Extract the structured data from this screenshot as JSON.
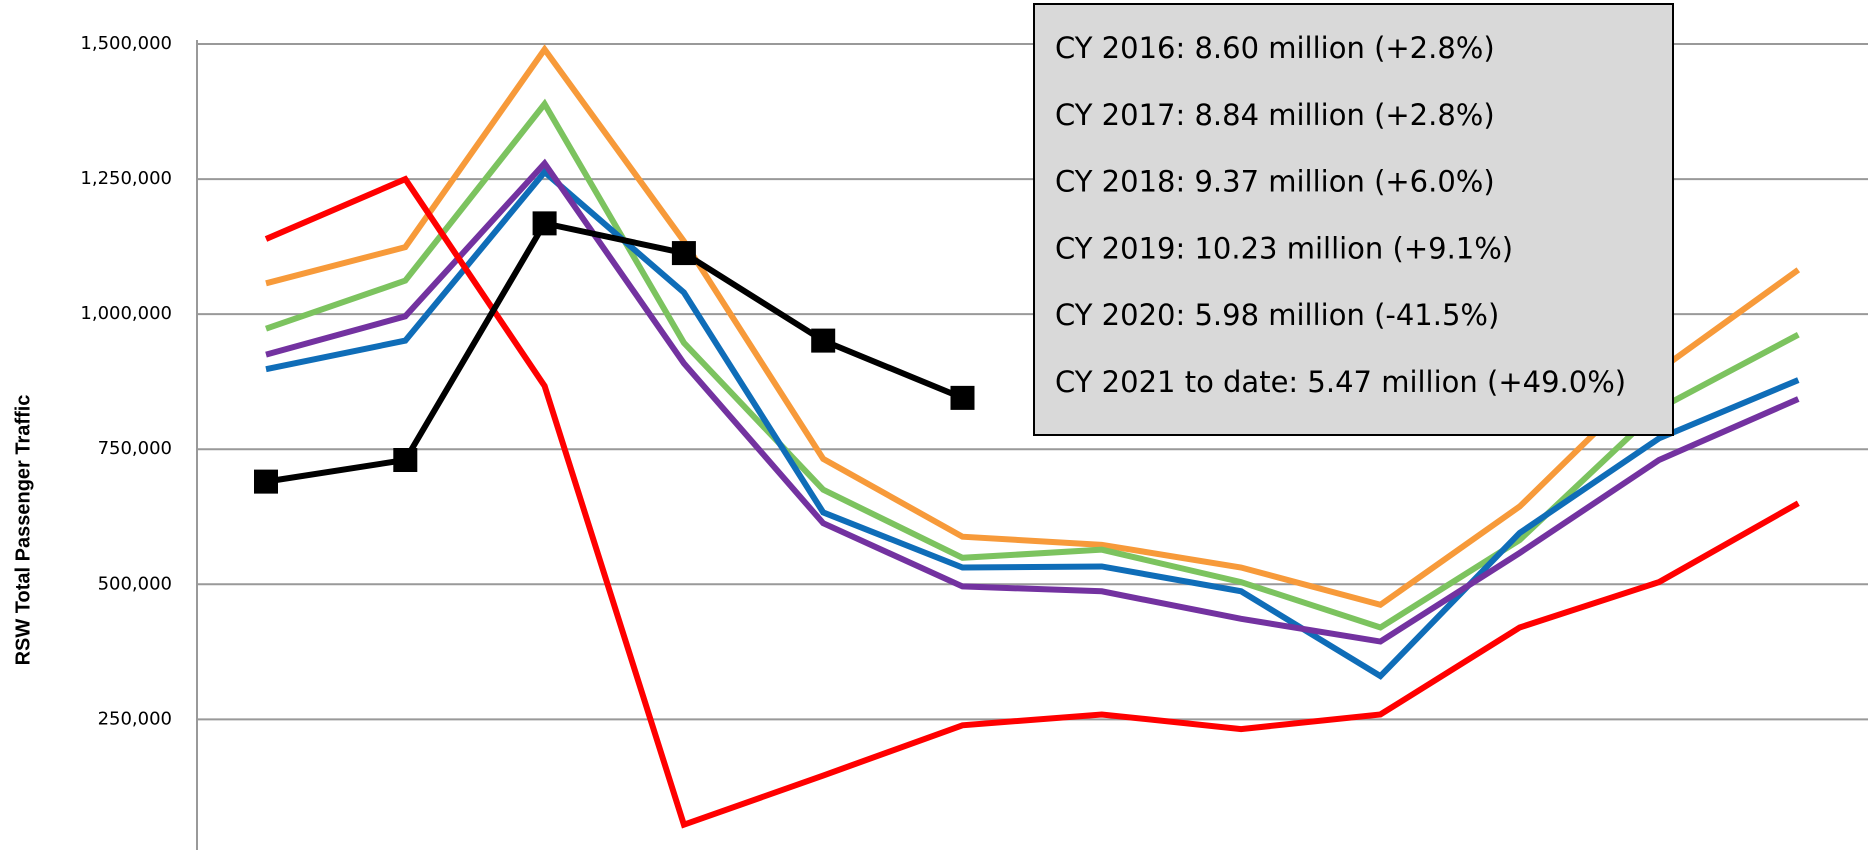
{
  "chart_data": {
    "type": "line",
    "y_label": "RSW Total Passenger Traffic",
    "annotations": [
      "CY 2016: 8.60 million (+2.8%)",
      "CY 2017: 8.84 million (+2.8%)",
      "CY 2018: 9.37 million (+6.0%)",
      "CY 2019:  10.23 million (+9.1%)",
      "CY 2020:  5.98 million (-41.5%)",
      "CY 2021 to date:  5.47 million (+49.0%)"
    ],
    "categories": [
      null,
      null,
      null,
      null,
      null,
      null,
      null,
      null,
      null,
      null,
      null,
      null
    ],
    "ylim": [
      10000,
      1500000
    ],
    "yticks": [
      {
        "value": 250000,
        "label": "250,000"
      },
      {
        "value": 500000,
        "label": "500,000"
      },
      {
        "value": 750000,
        "label": "750,000"
      },
      {
        "value": 1000000,
        "label": "1,000,000"
      },
      {
        "value": 1250000,
        "label": "1,250,000"
      },
      {
        "value": 1500000,
        "label": "1,500,000"
      }
    ],
    "grid": true,
    "series": [
      {
        "color": "#f79a3a",
        "values": [
          1057000,
          1124000,
          1490000,
          1135000,
          732000,
          588000,
          573000,
          531000,
          462000,
          644000,
          896000,
          1082000
        ]
      },
      {
        "color": "#7cc35f",
        "values": [
          973000,
          1062000,
          1389000,
          947000,
          675000,
          549000,
          564000,
          504000,
          420000,
          582000,
          825000,
          962000
        ]
      },
      {
        "color": "#0f6db8",
        "values": [
          898000,
          951000,
          1263000,
          1040000,
          633000,
          531000,
          533000,
          487000,
          330000,
          595000,
          770000,
          878000
        ]
      },
      {
        "color": "#7332a0",
        "values": [
          925000,
          996000,
          1279000,
          909000,
          613000,
          496000,
          487000,
          436000,
          394000,
          558000,
          730000,
          843000
        ]
      },
      {
        "color": "#ff0000",
        "values": [
          1139000,
          1250000,
          867000,
          55000,
          146000,
          239000,
          259000,
          232000,
          259000,
          420000,
          504000,
          650000
        ]
      },
      {
        "color": "#000000",
        "markers": true,
        "values": [
          690000,
          730000,
          1168000,
          1113000,
          951000,
          845000,
          null,
          null,
          null,
          null,
          null,
          null
        ]
      }
    ]
  }
}
